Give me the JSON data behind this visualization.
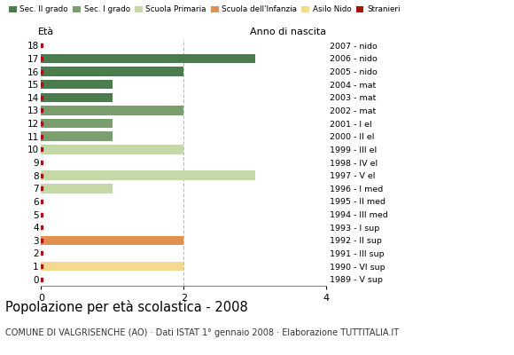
{
  "title": "Popolazione per età scolastica - 2008",
  "subtitle": "COMUNE DI VALGRISENCHE (AO) · Dati ISTAT 1° gennaio 2008 · Elaborazione TUTTITALIA.IT",
  "xlabel_left": "Età",
  "xlabel_right": "Anno di nascita",
  "ages": [
    18,
    17,
    16,
    15,
    14,
    13,
    12,
    11,
    10,
    9,
    8,
    7,
    6,
    5,
    4,
    3,
    2,
    1,
    0
  ],
  "right_labels": [
    "1989 - V sup",
    "1990 - VI sup",
    "1991 - III sup",
    "1992 - II sup",
    "1993 - I sup",
    "1994 - III med",
    "1995 - II med",
    "1996 - I med",
    "1997 - V el",
    "1998 - IV el",
    "1999 - III el",
    "2000 - II el",
    "2001 - I el",
    "2002 - mat",
    "2003 - mat",
    "2004 - mat",
    "2005 - nido",
    "2006 - nido",
    "2007 - nido"
  ],
  "bar_values": [
    0,
    3,
    2,
    1,
    1,
    2,
    1,
    1,
    2,
    0,
    3,
    1,
    0,
    0,
    0,
    2,
    0,
    2,
    0
  ],
  "bar_colors": [
    "#4a7c4e",
    "#4a7c4e",
    "#4a7c4e",
    "#4a7c4e",
    "#4a7c4e",
    "#7a9e6e",
    "#7a9e6e",
    "#7a9e6e",
    "#c5d9a8",
    "#c5d9a8",
    "#c5d9a8",
    "#c5d9a8",
    "#c5d9a8",
    "#c5d9a8",
    "#c5d9a8",
    "#e09050",
    "#e09050",
    "#f5d98e",
    "#f5d98e"
  ],
  "stranieri_color": "#aa1111",
  "legend_labels": [
    "Sec. II grado",
    "Sec. I grado",
    "Scuola Primaria",
    "Scuola dell'Infanzia",
    "Asilo Nido",
    "Stranieri"
  ],
  "legend_colors": [
    "#4a7c4e",
    "#7a9e6e",
    "#c5d9a8",
    "#e09050",
    "#f5d98e",
    "#aa1111"
  ],
  "xlim": [
    0,
    4
  ],
  "xticks": [
    0,
    2,
    4
  ],
  "background_color": "#ffffff",
  "grid_color": "#bbbbbb"
}
